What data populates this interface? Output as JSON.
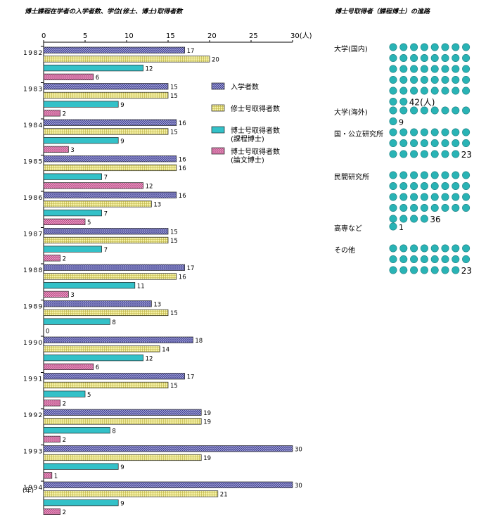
{
  "left_title": "博士課程在学者の入学者数、学位(修士、博士)取得者数",
  "right_title": "博士号取得者（課程博士）の進路",
  "colors": {
    "entrants": "#6a6ab8",
    "masters": "#f3ee8e",
    "course": "#33c1c8",
    "thesis": "#e37cb0",
    "dot": "#29b3b5"
  },
  "chart_data": [
    {
      "type": "bar",
      "orientation": "horizontal",
      "title": "博士課程在学者の入学者数、学位(修士、博士)取得者数",
      "categories": [
        "1982",
        "1983",
        "1984",
        "1985",
        "1986",
        "1987",
        "1988",
        "1989",
        "1990",
        "1991",
        "1992",
        "1993",
        "1994"
      ],
      "year_unit": "(年)",
      "x_unit": "(人)",
      "xlim": [
        0,
        30
      ],
      "x_ticks": [
        0,
        5,
        10,
        15,
        20,
        25,
        30
      ],
      "legend_position": "right",
      "series": [
        {
          "name": "入学者数",
          "color_key": "entrants",
          "values": [
            17,
            15,
            16,
            16,
            16,
            15,
            17,
            13,
            18,
            17,
            19,
            30,
            30
          ]
        },
        {
          "name": "修士号取得者数",
          "color_key": "masters",
          "values": [
            20,
            15,
            15,
            16,
            13,
            15,
            16,
            15,
            14,
            15,
            19,
            19,
            21
          ]
        },
        {
          "name": "博士号取得者数",
          "name_line2": "(課程博士)",
          "color_key": "course",
          "values": [
            12,
            9,
            9,
            7,
            7,
            7,
            11,
            8,
            12,
            5,
            8,
            9,
            9
          ]
        },
        {
          "name": "博士号取得者数",
          "name_line2": "(論文博士)",
          "color_key": "thesis",
          "values": [
            6,
            2,
            3,
            12,
            5,
            2,
            3,
            0,
            6,
            2,
            2,
            1,
            2
          ]
        }
      ]
    },
    {
      "type": "pictogram",
      "title": "博士号取得者（課程博士）の進路",
      "unit": "(人)",
      "dots_per_row": 8,
      "categories": [
        {
          "label": "大学(国内)",
          "value": 42
        },
        {
          "label": "大学(海外)",
          "value": 9
        },
        {
          "label": "国・公立研究所",
          "value": 23
        },
        {
          "label": "民間研究所",
          "value": 36
        },
        {
          "label": "高専など",
          "value": 1
        },
        {
          "label": "その他",
          "value": 23
        }
      ]
    }
  ]
}
